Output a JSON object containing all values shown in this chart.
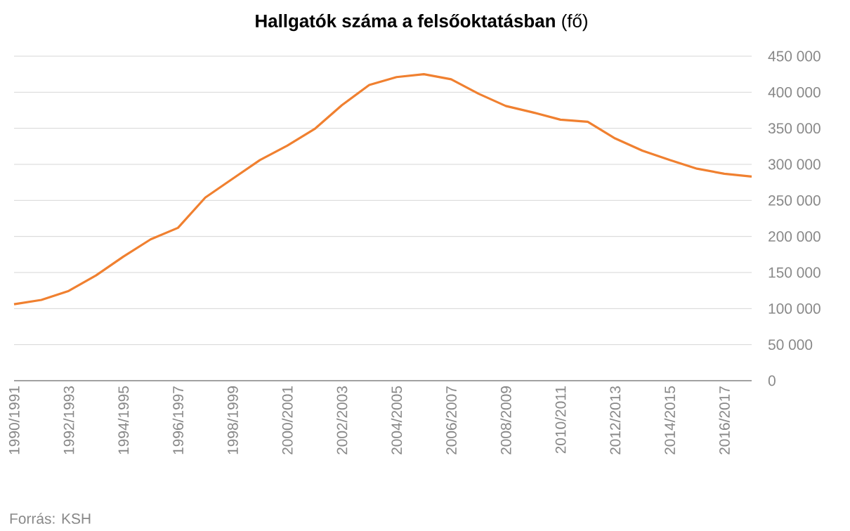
{
  "chart_data": {
    "type": "line",
    "title": "**Hallgatók száma a felsőoktatásban** (fő)",
    "categories": [
      "1990/1991",
      null,
      "1992/1993",
      null,
      "1994/1995",
      null,
      "1996/1997",
      null,
      "1998/1999",
      null,
      "2000/2001",
      null,
      "2002/2003",
      null,
      "2004/2005",
      null,
      "2006/2007",
      null,
      "2008/2009",
      null,
      "2010/2011",
      null,
      "2012/2013",
      null,
      "2014/2015",
      null,
      "2016/2017",
      null
    ],
    "series": [
      {
        "color": "#f08030",
        "values": [
          106000,
          112000,
          124500,
          146000,
          172000,
          196000,
          212000,
          254000,
          280000,
          306000,
          326000,
          349000,
          382000,
          410000,
          421000,
          425000,
          418000,
          398000,
          381000,
          372000,
          362000,
          359000,
          336000,
          319000,
          306000,
          294000,
          287000,
          283000
        ]
      }
    ],
    "ylim": [
      0,
      450000
    ],
    "yticks": [
      {
        "value": 0,
        "label": "0"
      },
      {
        "value": 50000,
        "label": "50 000"
      },
      {
        "value": 100000,
        "label": "100 000"
      },
      {
        "value": 150000,
        "label": "150 000"
      },
      {
        "value": 200000,
        "label": "200 000"
      },
      {
        "value": 250000,
        "label": "250 000"
      },
      {
        "value": 300000,
        "label": "300 000"
      },
      {
        "value": 350000,
        "label": "350 000"
      },
      {
        "value": 400000,
        "label": "400 000"
      },
      {
        "value": 450000,
        "label": "450 000"
      }
    ],
    "grid": "y",
    "marker": "none",
    "line_style": "solid",
    "annotations": [
      "Forrás: KSH"
    ]
  }
}
